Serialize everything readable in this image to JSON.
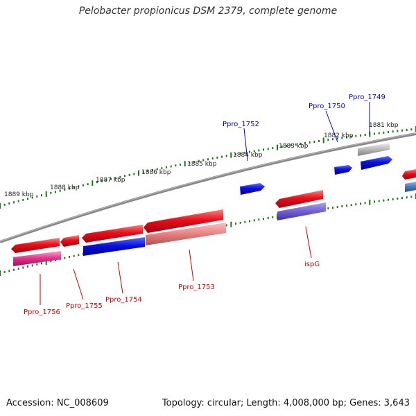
{
  "title": "Pelobacter propionicus DSM 2379, complete genome",
  "footer": {
    "accession": "Accession: NC_008609",
    "summary": "Topology: circular; Length: 4,008,000 bp; Genes: 3,643"
  },
  "scale_labels": [
    "1889 kbp",
    "1888 kbp",
    "1887 kbp",
    "1886 kbp",
    "1885 kbp",
    "1884 kbp",
    "1883 kbp",
    "1882 kbp",
    "1881 kbp"
  ],
  "gene_labels": {
    "ppro_1749": "Ppro_1749",
    "ppro_1750": "Ppro_1750",
    "ppro_1752": "Ppro_1752",
    "ppro_1753": "Ppro_1753",
    "ppro_1754": "Ppro_1754",
    "ppro_1755": "Ppro_1755",
    "ppro_1756": "Ppro_1756",
    "ispg": "ispG"
  },
  "colors": {
    "backbone": "#888888",
    "tick_green": "#1a7a1a",
    "forward_red": "#e8101a",
    "reverse_blue": "#0a10e0",
    "label_blue": "#0000cc",
    "label_red": "#cc0000",
    "pink": "#e0308a",
    "salmon": "#e88080",
    "lavender": "#7060d0",
    "grey_gene": "#b8b8b8",
    "steel": "#4a7ab8"
  }
}
